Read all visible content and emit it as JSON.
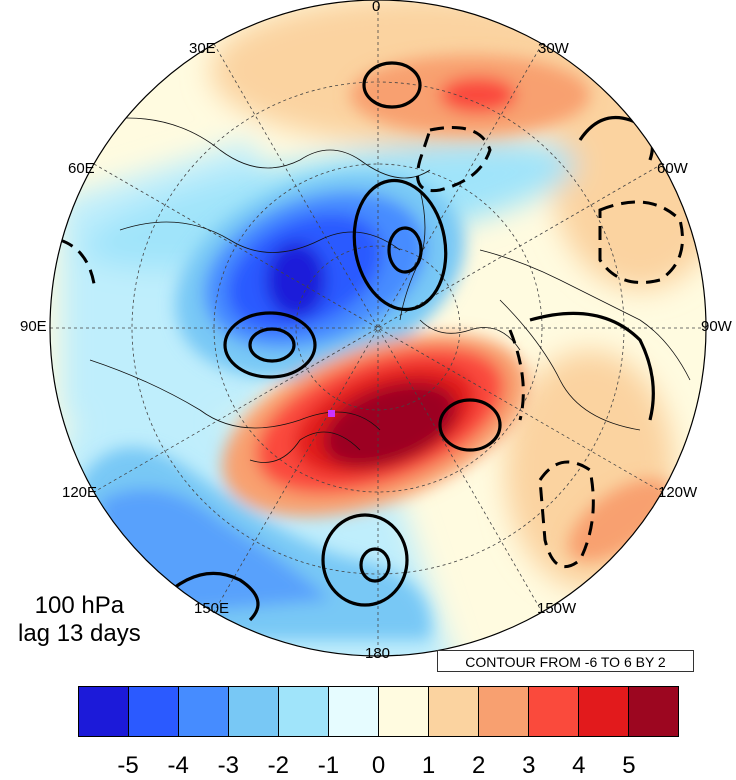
{
  "map": {
    "projection": "north-polar-stereographic",
    "field": "shaded anomaly with black contours",
    "longitude_labels": [
      "0",
      "30W",
      "60W",
      "90W",
      "120W",
      "150W",
      "180",
      "150E",
      "120E",
      "90E",
      "60E",
      "30E"
    ],
    "marker_color": "#cc33ff"
  },
  "title": {
    "line1": "100 hPa",
    "line2": "lag 13 days"
  },
  "contour_note": "CONTOUR FROM -6 TO 6 BY 2",
  "colorbar": {
    "colors": [
      "#1c1ad9",
      "#2b5aff",
      "#468cff",
      "#78c8f5",
      "#a0e4fa",
      "#e6fcff",
      "#fffbe0",
      "#fbd3a0",
      "#f8a070",
      "#fa4a3c",
      "#e21a1c",
      "#9c0620"
    ],
    "labels": [
      "-5",
      "-4",
      "-3",
      "-2",
      "-1",
      "0",
      "1",
      "2",
      "3",
      "4",
      "5"
    ]
  },
  "chart_data": {
    "type": "heatmap",
    "title": "",
    "levels": [
      -5,
      -4,
      -3,
      -2,
      -1,
      0,
      1,
      2,
      3,
      4,
      5
    ],
    "contour_range": [
      -6,
      6
    ],
    "contour_interval": 2,
    "features": [
      {
        "name": "negative-center-eurasia",
        "value": -5
      },
      {
        "name": "positive-center-pacific",
        "value": 5
      },
      {
        "name": "positive-north-atlantic",
        "value": 3
      },
      {
        "name": "negative-north-pacific-band",
        "value": -2
      }
    ]
  }
}
